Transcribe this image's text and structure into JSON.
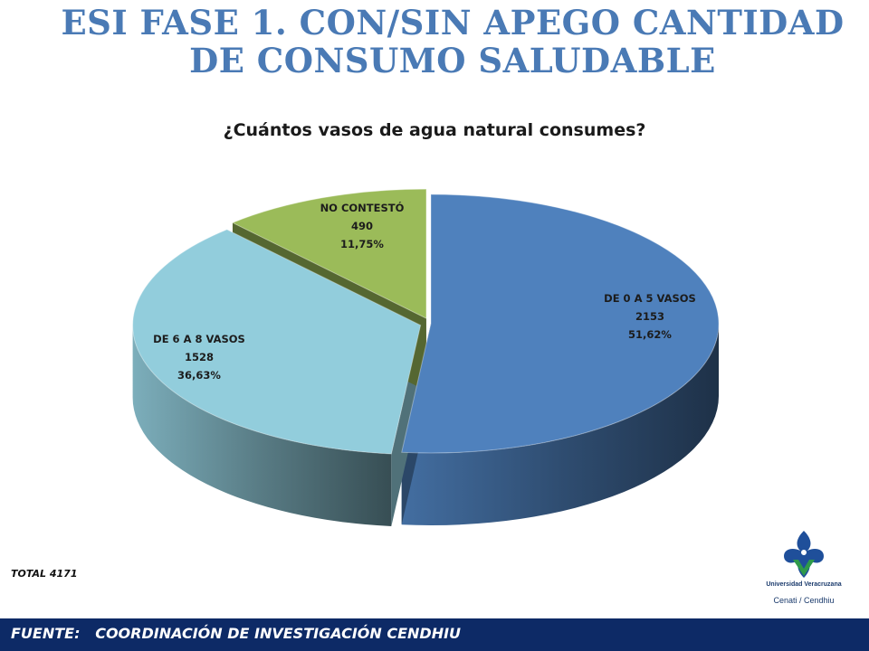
{
  "slide": {
    "title": "ESI FASE 1. CON/SIN APEGO CANTIDAD DE CONSUMO SALUDABLE",
    "total": "TOTAL 4171",
    "footer": "FUENTE:   COORDINACIÓN DE INVESTIGACIÓN CENDHIU",
    "logo": {
      "university": "Universidad Veracruzana",
      "department": "Cenati / Cendhiu"
    }
  },
  "colors": {
    "title": "#4a7ab5",
    "footer_bg": "#0d2a66",
    "slice_0_5": "#4f81bd",
    "slice_6_8": "#92cddc",
    "slice_nc": "#9bbb59"
  },
  "chart_data": {
    "type": "pie",
    "style": "3d-exploded",
    "title": "¿Cuántos vasos de agua natural consumes?",
    "total": 4171,
    "slices": [
      {
        "label": "DE 0 A 5 VASOS",
        "value": 2153,
        "percent": "51,62%",
        "color": "#4f81bd"
      },
      {
        "label": "DE 6 A 8 VASOS",
        "value": 1528,
        "percent": "36,63%",
        "color": "#92cddc"
      },
      {
        "label": "NO CONTESTÓ",
        "value": 490,
        "percent": "11,75%",
        "color": "#9bbb59"
      }
    ]
  }
}
